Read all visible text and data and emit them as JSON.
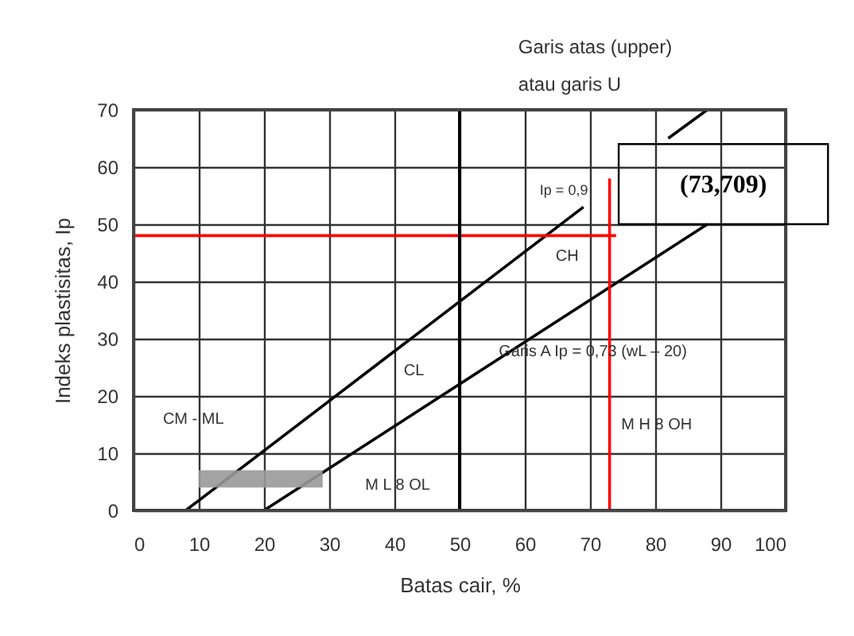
{
  "chart_data": {
    "type": "line",
    "xlabel": "Batas cair, %",
    "ylabel": "Indeks plastisitas, Ip",
    "xlim": [
      0,
      100
    ],
    "xticks": [
      0,
      10,
      20,
      30,
      40,
      50,
      60,
      70,
      80,
      90,
      100
    ],
    "ylim": [
      0,
      70
    ],
    "yticks": [
      0,
      10,
      20,
      30,
      40,
      50,
      60,
      70
    ],
    "grid": true,
    "series": [
      {
        "color": "#000000",
        "x": [
          8,
          69,
          75,
          82,
          88
        ],
        "values": [
          0,
          53,
          null,
          65,
          70
        ]
      },
      {
        "color": "#000000",
        "x": [
          20,
          88
        ],
        "values": [
          0,
          50
        ]
      },
      {
        "color": "#ff0000",
        "x": [
          0,
          74
        ],
        "values": [
          48,
          48
        ]
      },
      {
        "color": "#ff0000",
        "x": [
          73,
          73
        ],
        "values": [
          0,
          58
        ]
      }
    ],
    "bands": [
      {
        "axis": "y",
        "from": 4,
        "to": 7,
        "color": "#999999"
      }
    ],
    "ref_lines": [
      {
        "axis": "x",
        "value": 50,
        "color": "#000000"
      }
    ],
    "annotations": [
      "Garis atas (upper)",
      "atau garis U",
      "Ip = 0,9",
      "CH",
      "CL",
      "Garis A Ip = 0,73 (wL – 20)",
      "M H 8 OH",
      "M L 8 OL",
      "CM - ML",
      "(73,709)"
    ]
  }
}
